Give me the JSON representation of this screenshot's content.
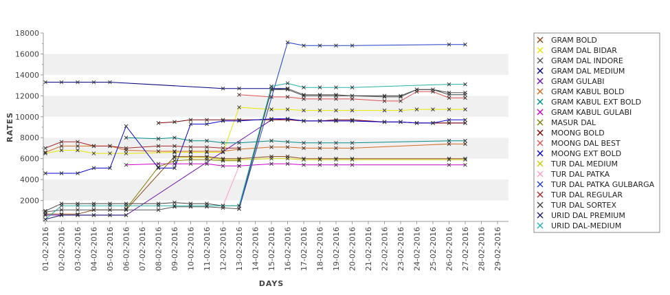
{
  "chart_data": {
    "type": "line",
    "xlabel": "DAYS",
    "ylabel": "RATES",
    "ylim": [
      0,
      18000
    ],
    "yticks": [
      2000,
      4000,
      6000,
      8000,
      10000,
      12000,
      14000,
      16000,
      18000
    ],
    "categories": [
      "01-02-2016",
      "02-02-2016",
      "03-02-2016",
      "04-02-2016",
      "05-02-2016",
      "06-02-2016",
      "07-02-2016",
      "08-02-2016",
      "09-02-2016",
      "10-02-2016",
      "11-02-2016",
      "12-02-2016",
      "13-02-2016",
      "14-02-2016",
      "15-02-2016",
      "16-02-2016",
      "17-02-2016",
      "18-02-2016",
      "19-02-2016",
      "20-02-2016",
      "21-02-2016",
      "22-02-2016",
      "23-02-2016",
      "24-02-2016",
      "25-02-2016",
      "26-02-2016",
      "27-02-2016",
      "28-02-2016",
      "29-02-2016"
    ],
    "grid": "horizontal alternating bands",
    "legend_position": "right",
    "series": [
      {
        "name": "GRAM BOLD",
        "color": "#8b4513",
        "values": [
          700,
          700,
          700,
          1100,
          1100,
          1100,
          null,
          null,
          6200,
          6200,
          6200,
          6000,
          6000,
          null,
          6200,
          6200,
          6000,
          6000,
          6000,
          6000,
          null,
          null,
          null,
          null,
          null,
          6000,
          6000,
          null,
          null
        ]
      },
      {
        "name": "GRAM DAL BIDAR",
        "color": "#e6e600",
        "values": [
          6500,
          6800,
          6800,
          6500,
          6500,
          6500,
          null,
          null,
          6600,
          6600,
          6600,
          6600,
          10900,
          null,
          10700,
          10700,
          10600,
          10600,
          10600,
          10600,
          null,
          10600,
          10600,
          10700,
          10700,
          10700,
          10700,
          null,
          null
        ]
      },
      {
        "name": "GRAM DAL INDORE",
        "color": "#555555",
        "values": [
          900,
          1100,
          1100,
          1100,
          1100,
          1100,
          null,
          1100,
          1400,
          1400,
          1400,
          1300,
          1200,
          null,
          12600,
          12700,
          12100,
          12100,
          12100,
          12000,
          null,
          11900,
          11900,
          12600,
          12600,
          12300,
          12300,
          null,
          null
        ]
      },
      {
        "name": "GRAM DAL MEDIUM",
        "color": "#000080",
        "values": [
          13300,
          13300,
          13300,
          13300,
          13300,
          null,
          null,
          null,
          null,
          null,
          null,
          12700,
          12700,
          null,
          12700,
          12700,
          null,
          null,
          null,
          null,
          null,
          null,
          null,
          null,
          null,
          null,
          null,
          null,
          null
        ]
      },
      {
        "name": "GRAM GULABI",
        "color": "#6a0dad",
        "values": [
          600,
          600,
          600,
          600,
          600,
          600,
          null,
          null,
          null,
          null,
          null,
          null,
          null,
          null,
          9700,
          9800,
          9600,
          9600,
          9600,
          9600,
          null,
          9500,
          9500,
          9400,
          9400,
          9400,
          9400,
          null,
          null
        ]
      },
      {
        "name": "GRAM KABUL BOLD",
        "color": "#d2691e",
        "values": [
          6600,
          7200,
          7200,
          7200,
          7200,
          6800,
          null,
          6700,
          6700,
          6700,
          6700,
          6700,
          6900,
          null,
          7100,
          7100,
          7000,
          7000,
          7000,
          7000,
          null,
          null,
          null,
          null,
          null,
          7400,
          7400,
          null,
          null
        ]
      },
      {
        "name": "GRAM KABUL EXT BOLD",
        "color": "#008b8b",
        "values": [
          null,
          null,
          null,
          null,
          null,
          8000,
          null,
          7900,
          8000,
          7700,
          7700,
          7500,
          7500,
          null,
          7700,
          7600,
          7500,
          7500,
          7500,
          7500,
          null,
          null,
          null,
          null,
          null,
          7700,
          7700,
          null,
          null
        ]
      },
      {
        "name": "GRAM KABUL GULABI",
        "color": "#cc00cc",
        "values": [
          null,
          null,
          null,
          null,
          null,
          5400,
          null,
          5500,
          5500,
          5500,
          5500,
          5300,
          5300,
          null,
          5500,
          5500,
          5400,
          5400,
          5400,
          5400,
          null,
          null,
          null,
          null,
          null,
          5400,
          5400,
          null,
          null
        ]
      },
      {
        "name": "MASUR DAL",
        "color": "#808000",
        "values": [
          null,
          null,
          null,
          null,
          null,
          1200,
          null,
          5200,
          5800,
          5900,
          5900,
          5800,
          5800,
          null,
          null,
          null,
          null,
          null,
          null,
          null,
          null,
          null,
          null,
          null,
          null,
          null,
          null,
          null,
          null
        ]
      },
      {
        "name": "MOONG BOLD",
        "color": "#800000",
        "values": [
          null,
          null,
          null,
          null,
          null,
          null,
          null,
          9400,
          9500,
          9700,
          9700,
          9700,
          9700,
          null,
          9700,
          9700,
          9600,
          9600,
          9700,
          9700,
          null,
          9500,
          9500,
          9400,
          9400,
          9400,
          9400,
          null,
          null
        ]
      },
      {
        "name": "MOONG DAL BEST",
        "color": "#e05050",
        "values": [
          null,
          null,
          null,
          null,
          null,
          null,
          null,
          null,
          null,
          null,
          null,
          null,
          12100,
          null,
          11900,
          11900,
          11700,
          11700,
          11700,
          11700,
          null,
          11500,
          11500,
          12400,
          12400,
          11800,
          11800,
          null,
          null
        ]
      },
      {
        "name": "MOONG EXT BOLD",
        "color": "#0000cd",
        "values": [
          4600,
          4600,
          4600,
          5100,
          5100,
          9100,
          null,
          5100,
          5100,
          9300,
          9300,
          9600,
          9600,
          null,
          9800,
          9800,
          9600,
          9600,
          9600,
          9600,
          null,
          9500,
          9500,
          9400,
          9400,
          9700,
          9700,
          null,
          null
        ]
      },
      {
        "name": "TUR DAL MEDIUM",
        "color": "#cccc00",
        "values": [
          null,
          null,
          null,
          null,
          null,
          null,
          null,
          null,
          6100,
          6100,
          6100,
          5900,
          5900,
          null,
          6000,
          6000,
          5900,
          5900,
          5900,
          5900,
          null,
          null,
          null,
          null,
          null,
          5900,
          5900,
          null,
          null
        ]
      },
      {
        "name": "TUR DAL PATKA",
        "color": "#ff99cc",
        "values": [
          null,
          null,
          null,
          null,
          null,
          null,
          null,
          null,
          null,
          null,
          null,
          1500,
          5300,
          null,
          null,
          null,
          null,
          null,
          null,
          null,
          null,
          null,
          null,
          null,
          null,
          null,
          null,
          null,
          null
        ]
      },
      {
        "name": "TUR DAL PATKA GULBARGA",
        "color": "#1e3cc8",
        "values": [
          null,
          null,
          null,
          null,
          null,
          null,
          null,
          null,
          null,
          null,
          null,
          null,
          1200,
          null,
          null,
          17100,
          16800,
          16800,
          16800,
          16800,
          null,
          null,
          null,
          null,
          null,
          16900,
          16900,
          null,
          null
        ]
      },
      {
        "name": "TUR DAL REGULAR",
        "color": "#a52a2a",
        "values": [
          7000,
          7600,
          7600,
          7200,
          7200,
          7000,
          null,
          7200,
          7200,
          7100,
          7100,
          7000,
          7000,
          null,
          null,
          null,
          null,
          null,
          null,
          null,
          null,
          null,
          null,
          null,
          null,
          null,
          null,
          null,
          null
        ]
      },
      {
        "name": "TUR DAL SORTEX",
        "color": "#404040",
        "values": [
          1000,
          1700,
          1700,
          1700,
          1700,
          1700,
          null,
          1700,
          1800,
          1700,
          1700,
          1500,
          1500,
          null,
          12600,
          12600,
          12000,
          12000,
          12000,
          12000,
          null,
          12000,
          12000,
          12600,
          12600,
          12100,
          12100,
          null,
          null
        ]
      },
      {
        "name": "URID DAL PREMIUM",
        "color": "#191970",
        "values": [
          200,
          600,
          600,
          600,
          600,
          600,
          null,
          null,
          null,
          null,
          null,
          null,
          null,
          null,
          null,
          null,
          null,
          null,
          null,
          null,
          null,
          null,
          null,
          null,
          null,
          null,
          null,
          null,
          null
        ]
      },
      {
        "name": "URID DAL-MEDIUM",
        "color": "#20b2aa",
        "values": [
          200,
          1500,
          1500,
          1500,
          1500,
          1500,
          null,
          1500,
          1500,
          1500,
          1500,
          1500,
          1500,
          null,
          12900,
          13200,
          12800,
          12800,
          12800,
          12800,
          null,
          null,
          null,
          null,
          null,
          13100,
          13100,
          null,
          null
        ]
      }
    ]
  }
}
